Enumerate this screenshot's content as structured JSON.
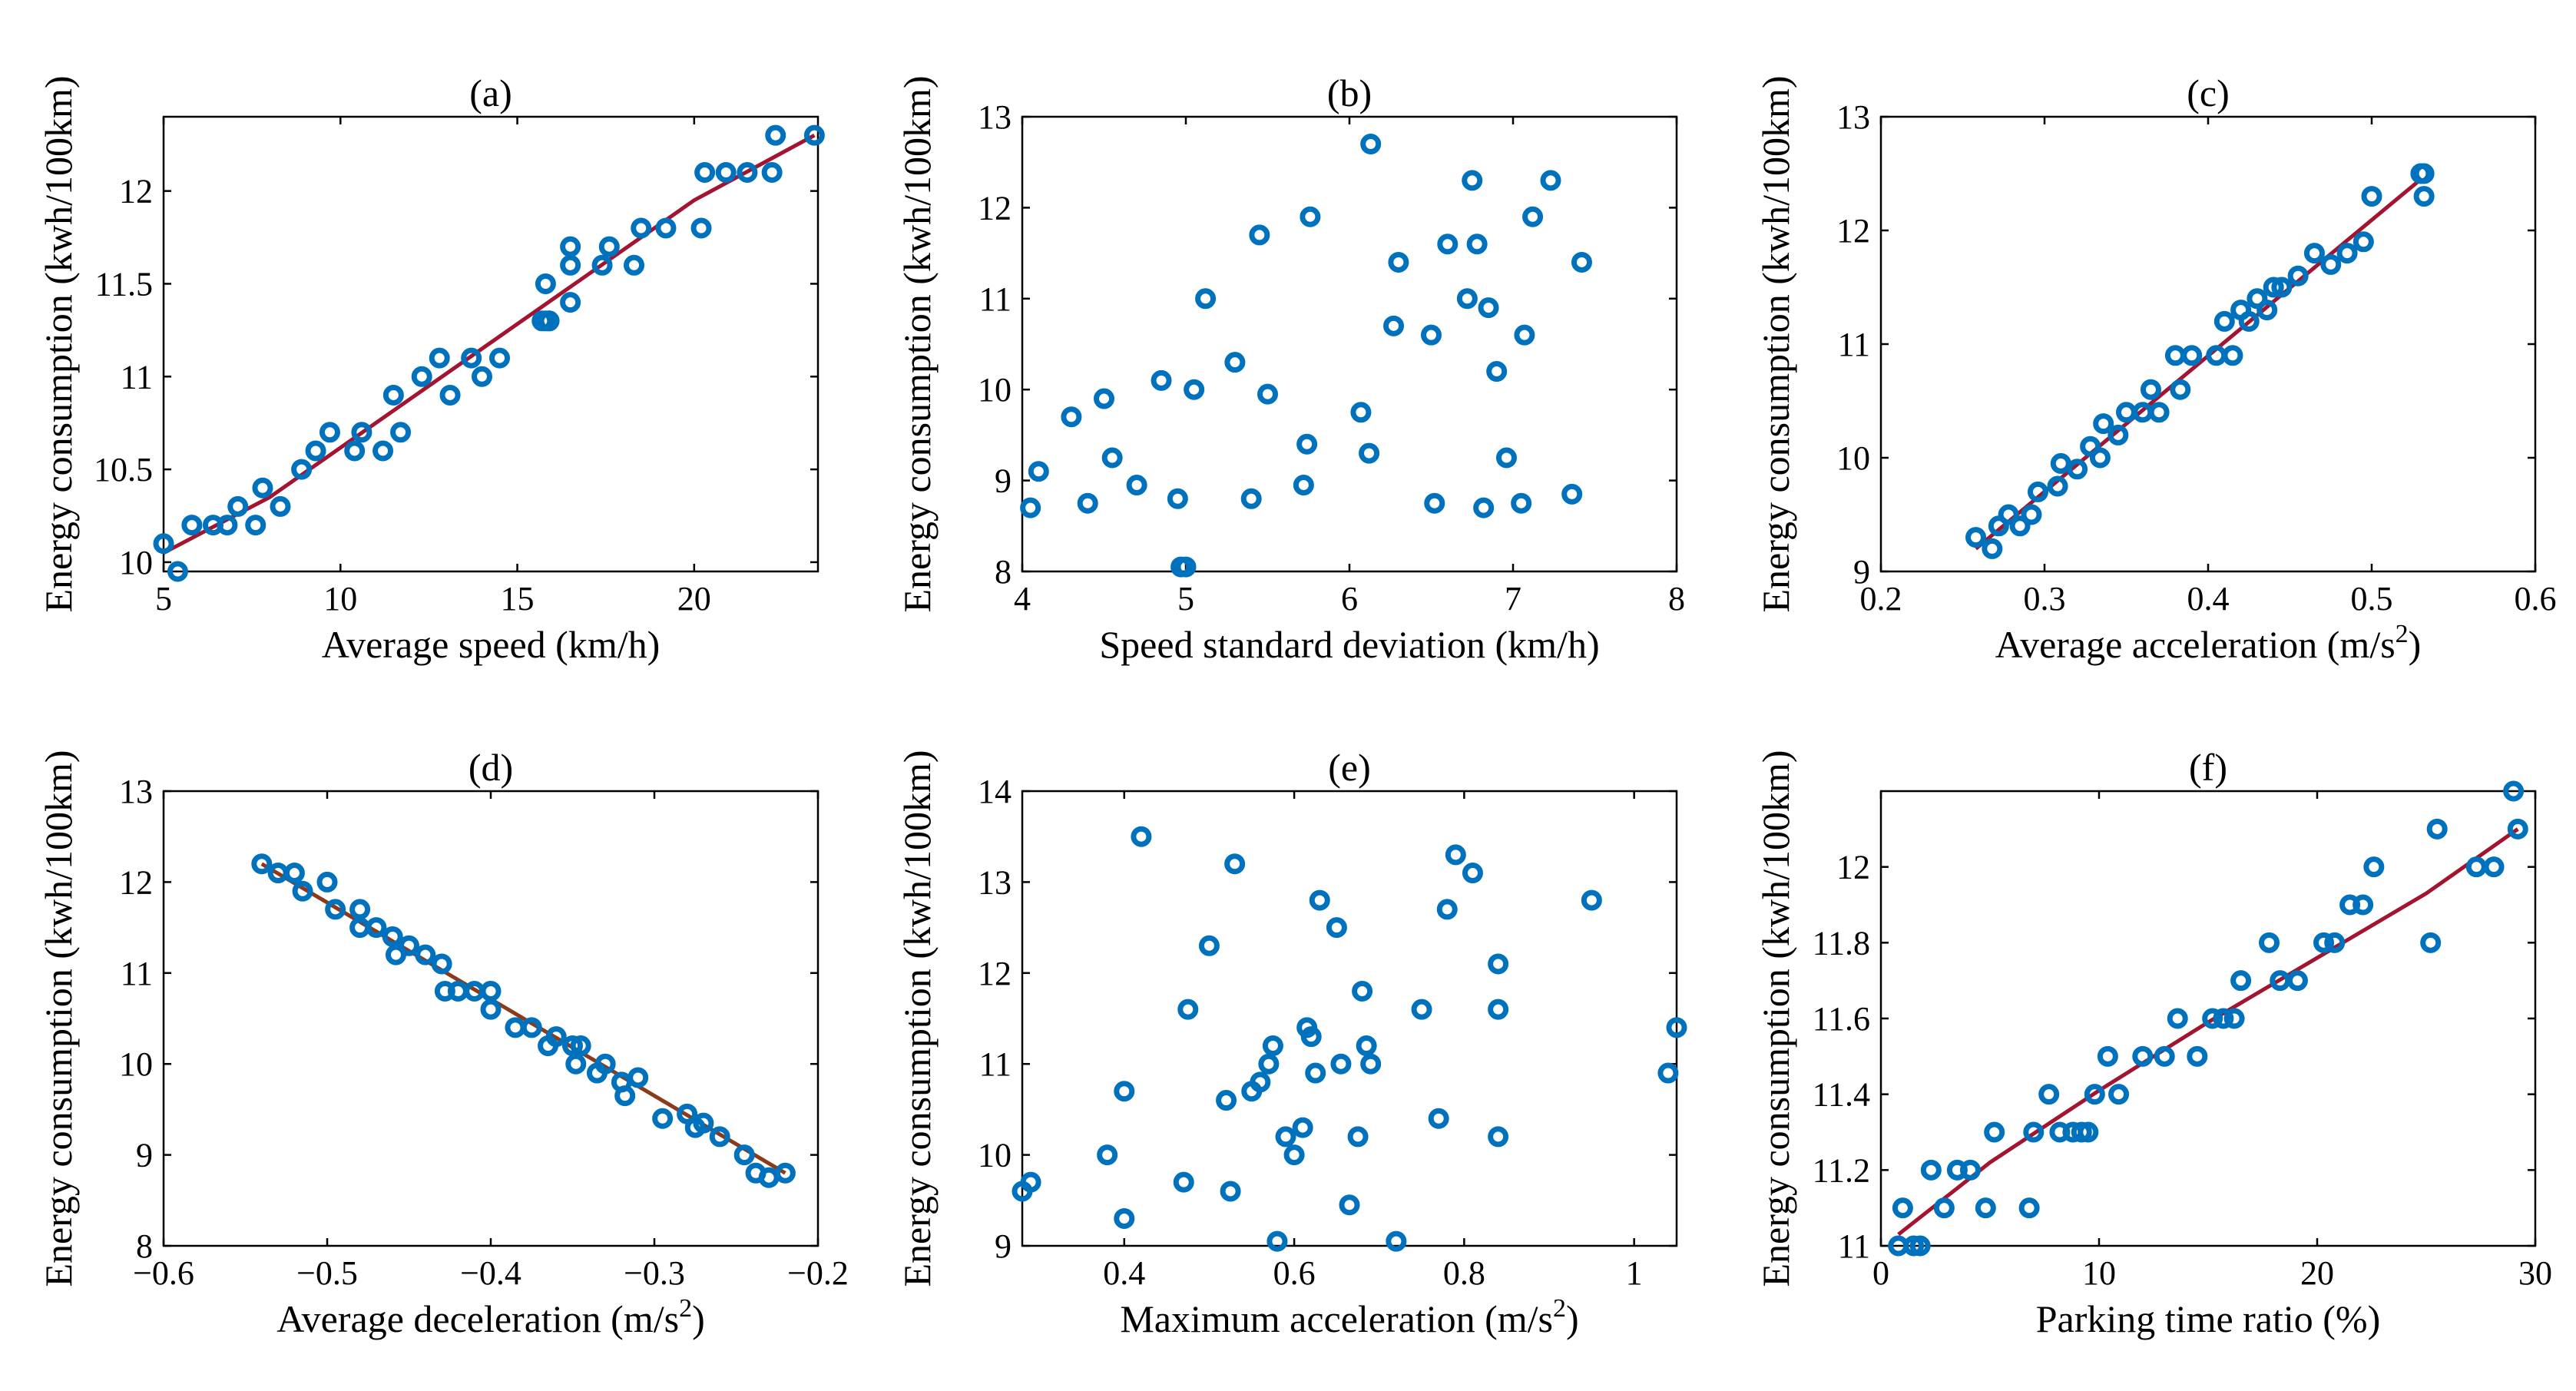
{
  "colors": {
    "marker": "#0072BD",
    "fit": "#A2142F",
    "fit_dark": "#8B3A1A"
  },
  "chart_data": [
    {
      "id": "a",
      "type": "scatter",
      "title": "(a)",
      "xlabel": "Average speed (km/h)",
      "ylabel": "Energy consumption (kwh/100km)",
      "xlim": [
        5,
        23.5
      ],
      "ylim": [
        9.95,
        12.4
      ],
      "xticks": [
        5,
        10,
        15,
        20
      ],
      "yticks": [
        10,
        10.5,
        11,
        11.5,
        12
      ],
      "x": [
        5.0,
        5.4,
        5.8,
        6.4,
        6.8,
        7.1,
        7.6,
        7.8,
        8.3,
        8.9,
        9.3,
        9.7,
        10.4,
        10.6,
        11.2,
        11.5,
        11.7,
        12.3,
        12.8,
        13.1,
        13.7,
        14.0,
        14.5,
        15.7,
        15.8,
        15.9,
        15.8,
        15.9,
        16.5,
        16.5,
        16.5,
        17.4,
        17.6,
        18.3,
        18.5,
        19.2,
        20.2,
        20.3,
        20.9,
        21.5,
        22.2,
        22.3,
        23.4
      ],
      "y": [
        10.1,
        9.95,
        10.2,
        10.2,
        10.2,
        10.3,
        10.2,
        10.4,
        10.3,
        10.5,
        10.6,
        10.7,
        10.6,
        10.7,
        10.6,
        10.9,
        10.7,
        11.0,
        11.1,
        10.9,
        11.1,
        11.0,
        11.1,
        11.3,
        11.5,
        11.3,
        11.3,
        11.3,
        11.7,
        11.6,
        11.4,
        11.6,
        11.7,
        11.6,
        11.8,
        11.8,
        11.8,
        12.1,
        12.1,
        12.1,
        12.1,
        12.3,
        12.3
      ],
      "fit": {
        "x": [
          5,
          8,
          11,
          14,
          17,
          20,
          23.4
        ],
        "y": [
          10.05,
          10.35,
          10.75,
          11.15,
          11.55,
          11.95,
          12.3
        ],
        "color": "fit"
      }
    },
    {
      "id": "b",
      "type": "scatter",
      "title": "(b)",
      "xlabel": "Speed standard deviation (km/h)",
      "ylabel": "Energy consumption (kwh/100km)",
      "xlim": [
        4,
        8
      ],
      "ylim": [
        8,
        13
      ],
      "xticks": [
        4,
        5,
        6,
        7,
        8
      ],
      "yticks": [
        8,
        9,
        10,
        11,
        12,
        13
      ],
      "x": [
        4.05,
        4.1,
        4.3,
        4.4,
        4.5,
        4.55,
        4.7,
        4.85,
        4.95,
        5.0,
        5.05,
        5.12,
        5.3,
        5.4,
        5.45,
        5.5,
        5.72,
        5.74,
        5.76,
        6.07,
        6.12,
        6.13,
        6.27,
        6.3,
        6.5,
        6.52,
        6.6,
        6.72,
        6.75,
        6.78,
        6.82,
        6.85,
        6.9,
        6.96,
        7.05,
        7.07,
        7.12,
        7.23,
        7.36,
        7.42,
        4.97
      ],
      "y": [
        8.7,
        9.1,
        9.7,
        8.75,
        9.9,
        9.25,
        8.95,
        10.1,
        8.8,
        8.05,
        10.0,
        11.0,
        10.3,
        8.8,
        11.7,
        9.95,
        8.95,
        9.4,
        11.9,
        9.75,
        9.3,
        12.7,
        10.7,
        11.4,
        10.6,
        8.75,
        11.6,
        11.0,
        12.3,
        11.6,
        8.7,
        10.9,
        10.2,
        9.25,
        8.75,
        10.6,
        11.9,
        12.3,
        8.85,
        11.4,
        8.05
      ]
    },
    {
      "id": "c",
      "type": "scatter",
      "title": "(c)",
      "xlabel": "Average acceleration (m/s",
      "xlabel_sup": "2",
      "xlabel_end": ")",
      "ylabel": "Energy consumption (kwh/100km)",
      "xlim": [
        0.2,
        0.6
      ],
      "ylim": [
        9,
        13
      ],
      "xticks": [
        0.2,
        0.3,
        0.4,
        0.5,
        0.6
      ],
      "yticks": [
        9,
        10,
        11,
        12,
        13
      ],
      "x": [
        0.258,
        0.268,
        0.272,
        0.278,
        0.285,
        0.292,
        0.296,
        0.308,
        0.31,
        0.32,
        0.328,
        0.334,
        0.336,
        0.345,
        0.35,
        0.36,
        0.365,
        0.37,
        0.38,
        0.383,
        0.39,
        0.405,
        0.41,
        0.415,
        0.42,
        0.425,
        0.43,
        0.436,
        0.44,
        0.445,
        0.455,
        0.465,
        0.475,
        0.485,
        0.495,
        0.5,
        0.53,
        0.532,
        0.532
      ],
      "y": [
        9.3,
        9.2,
        9.4,
        9.5,
        9.4,
        9.5,
        9.7,
        9.75,
        9.95,
        9.9,
        10.1,
        10.0,
        10.3,
        10.2,
        10.4,
        10.4,
        10.6,
        10.4,
        10.9,
        10.6,
        10.9,
        10.9,
        11.2,
        10.9,
        11.3,
        11.2,
        11.4,
        11.3,
        11.5,
        11.5,
        11.6,
        11.8,
        11.7,
        11.8,
        11.9,
        12.3,
        12.5,
        12.3,
        12.5
      ],
      "fit": {
        "x": [
          0.258,
          0.53
        ],
        "y": [
          9.2,
          12.45
        ],
        "color": "fit"
      }
    },
    {
      "id": "d",
      "type": "scatter",
      "title": "(d)",
      "xlabel": "Average deceleration (m/s",
      "xlabel_sup": "2",
      "xlabel_end": ")",
      "ylabel": "Energy consumption (kwh/100km)",
      "xlim": [
        -0.6,
        -0.2
      ],
      "ylim": [
        8,
        13
      ],
      "xticks": [
        -0.6,
        -0.5,
        -0.4,
        -0.3,
        -0.2
      ],
      "yticks": [
        8,
        9,
        10,
        11,
        12,
        13
      ],
      "x": [
        -0.54,
        -0.53,
        -0.52,
        -0.515,
        -0.5,
        -0.495,
        -0.48,
        -0.48,
        -0.47,
        -0.46,
        -0.458,
        -0.45,
        -0.44,
        -0.43,
        -0.428,
        -0.42,
        -0.41,
        -0.4,
        -0.4,
        -0.385,
        -0.375,
        -0.365,
        -0.36,
        -0.35,
        -0.348,
        -0.345,
        -0.335,
        -0.33,
        -0.32,
        -0.318,
        -0.31,
        -0.295,
        -0.28,
        -0.275,
        -0.27,
        -0.26,
        -0.245,
        -0.238,
        -0.23,
        -0.22
      ],
      "y": [
        12.2,
        12.1,
        12.1,
        11.9,
        12.0,
        11.7,
        11.7,
        11.5,
        11.5,
        11.4,
        11.2,
        11.3,
        11.2,
        11.1,
        10.8,
        10.8,
        10.8,
        10.8,
        10.6,
        10.4,
        10.4,
        10.2,
        10.3,
        10.2,
        10.0,
        10.2,
        9.9,
        10.0,
        9.8,
        9.65,
        9.85,
        9.4,
        9.45,
        9.3,
        9.35,
        9.2,
        9.0,
        8.8,
        8.75,
        8.8
      ],
      "fit": {
        "x": [
          -0.54,
          -0.22
        ],
        "y": [
          12.2,
          8.8
        ],
        "color": "fit_dark"
      }
    },
    {
      "id": "e",
      "type": "scatter",
      "title": "(e)",
      "xlabel": "Maximum acceleration (m/s",
      "xlabel_sup": "2",
      "xlabel_end": ")",
      "ylabel": "Energy consumption (kwh/100km)",
      "xlim": [
        0.28,
        1.05
      ],
      "ylim": [
        9,
        14
      ],
      "xticks": [
        0.4,
        0.6,
        0.8,
        1
      ],
      "yticks": [
        9,
        10,
        11,
        12,
        13,
        14
      ],
      "x": [
        0.28,
        0.29,
        0.38,
        0.4,
        0.4,
        0.42,
        0.47,
        0.475,
        0.5,
        0.52,
        0.525,
        0.53,
        0.55,
        0.56,
        0.57,
        0.575,
        0.58,
        0.59,
        0.6,
        0.61,
        0.615,
        0.62,
        0.625,
        0.63,
        0.65,
        0.655,
        0.665,
        0.675,
        0.68,
        0.685,
        0.69,
        0.72,
        0.75,
        0.77,
        0.78,
        0.79,
        0.81,
        0.84,
        0.84,
        0.84,
        0.95,
        1.04,
        1.05
      ],
      "y": [
        9.6,
        9.7,
        10.0,
        9.3,
        10.7,
        13.5,
        9.7,
        11.6,
        12.3,
        10.6,
        9.6,
        13.2,
        10.7,
        10.8,
        11.0,
        11.2,
        9.05,
        10.2,
        10.0,
        10.3,
        11.4,
        11.3,
        10.9,
        12.8,
        12.5,
        11.0,
        9.45,
        10.2,
        11.8,
        11.2,
        11.0,
        9.05,
        11.6,
        10.4,
        12.7,
        13.3,
        13.1,
        12.1,
        11.6,
        10.2,
        12.8,
        10.9,
        11.4
      ],
      "x_override": true
    },
    {
      "id": "f",
      "type": "scatter",
      "title": "(f)",
      "xlabel": "Parking time ratio (%)",
      "ylabel": "Energy consumption (kwh/100km)",
      "xlim": [
        0,
        30
      ],
      "ylim": [
        11,
        12.2
      ],
      "xticks": [
        0,
        10,
        20,
        30
      ],
      "yticks": [
        11,
        11.2,
        11.4,
        11.6,
        11.8,
        12
      ],
      "x": [
        0.8,
        1.0,
        1.5,
        1.8,
        2.3,
        2.9,
        3.5,
        4.1,
        4.8,
        5.2,
        6.8,
        7.0,
        7.7,
        8.2,
        8.8,
        9.2,
        9.5,
        9.8,
        10.4,
        10.9,
        12.0,
        13.0,
        13.6,
        14.5,
        15.2,
        15.7,
        16.2,
        16.5,
        17.8,
        18.3,
        19.1,
        20.3,
        20.8,
        21.5,
        22.1,
        22.6,
        25.2,
        25.5,
        27.3,
        28.1,
        29.0,
        29.2
      ],
      "y": [
        11.0,
        11.1,
        11.0,
        11.0,
        11.2,
        11.1,
        11.2,
        11.2,
        11.1,
        11.3,
        11.1,
        11.3,
        11.4,
        11.3,
        11.3,
        11.3,
        11.3,
        11.4,
        11.5,
        11.4,
        11.5,
        11.5,
        11.6,
        11.5,
        11.6,
        11.6,
        11.6,
        11.7,
        11.8,
        11.7,
        11.7,
        11.8,
        11.8,
        11.9,
        11.9,
        12.0,
        11.8,
        12.1,
        12.0,
        12.0,
        12.2,
        12.1
      ],
      "fit": {
        "x": [
          0.8,
          5,
          10,
          15,
          20,
          25,
          29.2
        ],
        "y": [
          11.03,
          11.22,
          11.41,
          11.59,
          11.76,
          11.93,
          12.1
        ],
        "color": "fit"
      }
    }
  ]
}
